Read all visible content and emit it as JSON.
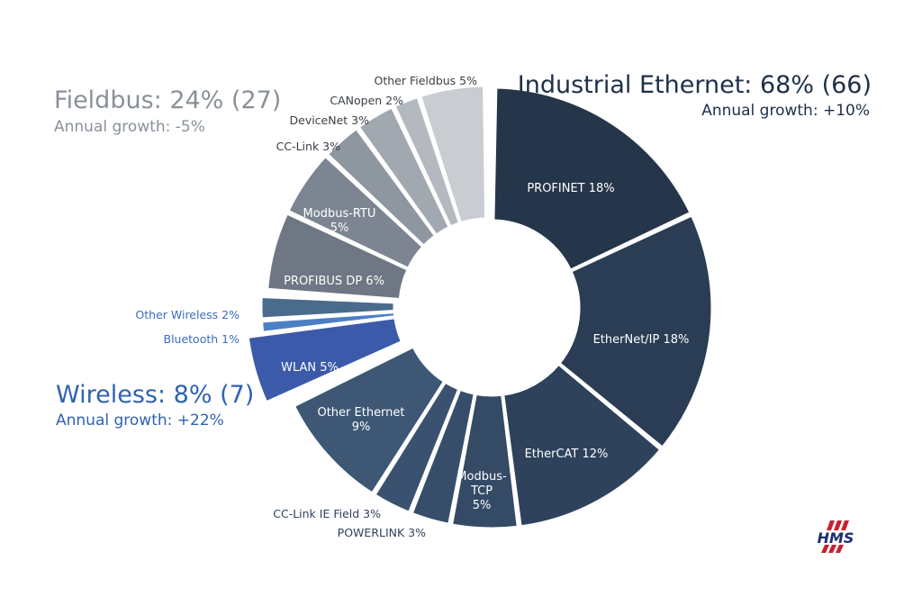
{
  "groups": {
    "ethernet": {
      "title": "Industrial Ethernet: 68% (66)",
      "growth": "Annual growth: +10%"
    },
    "fieldbus": {
      "title": "Fieldbus: 24% (27)",
      "growth": "Annual growth: -5%"
    },
    "wireless": {
      "title": "Wireless: 8% (7)",
      "growth": "Annual growth: +22%"
    }
  },
  "logo": {
    "text": "HMS"
  },
  "chart_data": {
    "type": "pie",
    "variant": "donut",
    "title": "",
    "slices": [
      {
        "name": "PROFINET",
        "value": 18,
        "label": "PROFINET 18%",
        "group": "ethernet",
        "color": "#26364a"
      },
      {
        "name": "EtherNet/IP",
        "value": 18,
        "label": "EtherNet/IP 18%",
        "group": "ethernet",
        "color": "#2b3d54"
      },
      {
        "name": "EtherCAT",
        "value": 12,
        "label": "EtherCAT 12%",
        "group": "ethernet",
        "color": "#2e425c"
      },
      {
        "name": "Modbus-TCP",
        "value": 5,
        "label": "Modbus-\nTCP\n5%",
        "group": "ethernet",
        "color": "#344a65"
      },
      {
        "name": "POWERLINK",
        "value": 3,
        "label": "POWERLINK 3%",
        "group": "ethernet",
        "color": "#374e6a"
      },
      {
        "name": "CC-Link IE Field",
        "value": 3,
        "label": "CC-Link IE Field 3%",
        "group": "ethernet",
        "color": "#3a526f"
      },
      {
        "name": "Other Ethernet",
        "value": 9,
        "label": "Other Ethernet\n9%",
        "group": "ethernet",
        "color": "#3d5775"
      },
      {
        "name": "WLAN",
        "value": 5,
        "label": "WLAN 5%",
        "group": "wireless",
        "color": "#3b5aa9"
      },
      {
        "name": "Bluetooth",
        "value": 1,
        "label": "Bluetooth 1%",
        "group": "wireless",
        "color": "#4d7fc4"
      },
      {
        "name": "Other Wireless",
        "value": 2,
        "label": "Other Wireless 2%",
        "group": "wireless",
        "color": "#4a6b8c"
      },
      {
        "name": "PROFIBUS DP",
        "value": 6,
        "label": "PROFIBUS DP 6%",
        "group": "fieldbus",
        "color": "#6e7783"
      },
      {
        "name": "Modbus-RTU",
        "value": 5,
        "label": "Modbus-RTU\n5%",
        "group": "fieldbus",
        "color": "#7c8591"
      },
      {
        "name": "CC-Link",
        "value": 3,
        "label": "CC-Link 3%",
        "group": "fieldbus",
        "color": "#8e969f"
      },
      {
        "name": "DeviceNet",
        "value": 3,
        "label": "DeviceNet 3%",
        "group": "fieldbus",
        "color": "#a2a8b0"
      },
      {
        "name": "CANopen",
        "value": 2,
        "label": "CANopen 2%",
        "group": "fieldbus",
        "color": "#b4b9c0"
      },
      {
        "name": "Other Fieldbus",
        "value": 5,
        "label": "Other Fieldbus 5%",
        "group": "fieldbus",
        "color": "#c9cdd2"
      }
    ]
  }
}
